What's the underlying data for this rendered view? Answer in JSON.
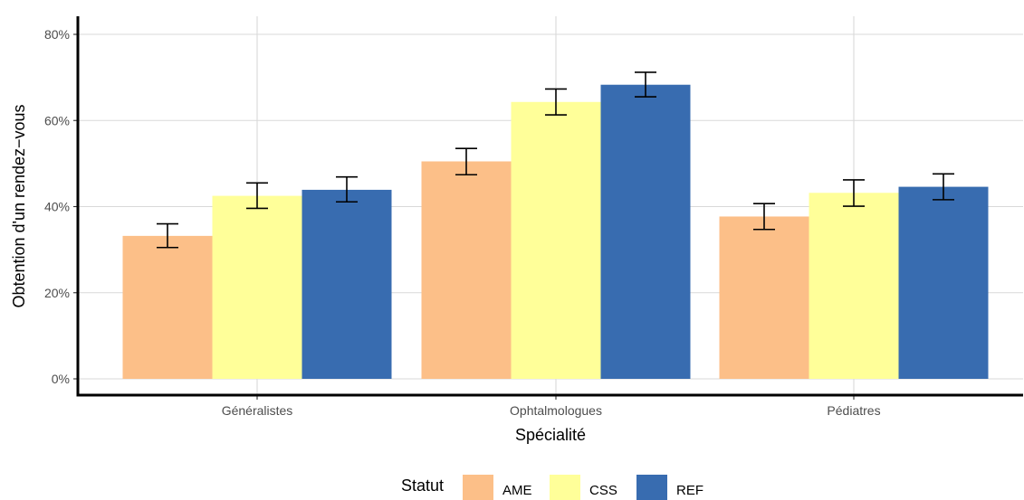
{
  "chart_data": {
    "type": "bar",
    "title": "",
    "xlabel": "Spécialité",
    "ylabel": "Obtention d'un rendez−vous",
    "categories": [
      "Généralistes",
      "Ophtalmologues",
      "Pédiatres"
    ],
    "ylim": [
      0,
      0.8
    ],
    "yticks": [
      0,
      0.2,
      0.4,
      0.6,
      0.8
    ],
    "ytick_labels": [
      "0%",
      "20%",
      "40%",
      "60%",
      "80%"
    ],
    "grid": true,
    "legend": {
      "title": "Statut",
      "position": "bottom"
    },
    "series": [
      {
        "name": "AME",
        "color": "#FCBF88",
        "values": [
          0.332,
          0.505,
          0.377
        ],
        "error_low": [
          0.305,
          0.474,
          0.347
        ],
        "error_high": [
          0.36,
          0.535,
          0.407
        ]
      },
      {
        "name": "CSS",
        "color": "#FFFF99",
        "values": [
          0.425,
          0.643,
          0.432
        ],
        "error_low": [
          0.396,
          0.613,
          0.401
        ],
        "error_high": [
          0.455,
          0.673,
          0.462
        ]
      },
      {
        "name": "REF",
        "color": "#386CB0",
        "values": [
          0.439,
          0.683,
          0.446
        ],
        "error_low": [
          0.411,
          0.655,
          0.416
        ],
        "error_high": [
          0.469,
          0.712,
          0.476
        ]
      }
    ]
  }
}
